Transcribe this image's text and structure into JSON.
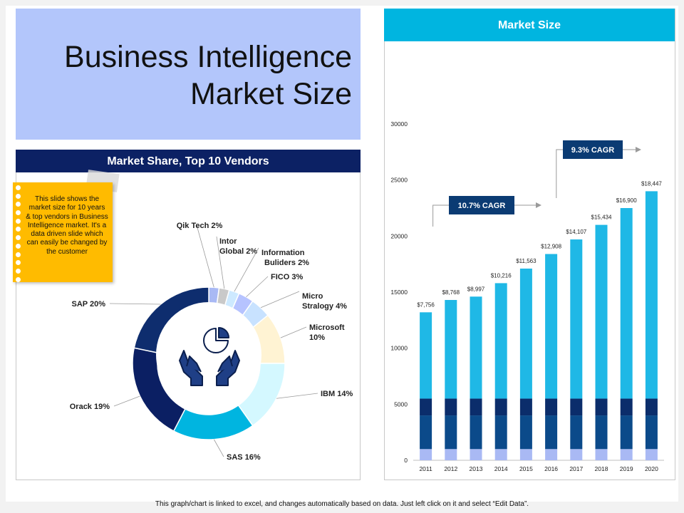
{
  "title": {
    "line1": "Business Intelligence",
    "line2": "Market Size"
  },
  "share_panel": {
    "header": "Market Share, Top 10 Vendors"
  },
  "size_panel": {
    "header": "Market Size"
  },
  "note": {
    "text": "This slide shows the market size for 10 years & top vendors in Business Intelligence market. It's a data driven slide which can easily be changed by the customer"
  },
  "footer": "This graph/chart is linked to excel, and changes automatically based on data. Just left click on it and select “Edit Data”.",
  "colors": {
    "title_bg": "#b3c6fb",
    "navy": "#0c2164",
    "cyan": "#00b5e0",
    "note": "#ffbb00",
    "bar_top": "#1fb8e6",
    "bar_seg3": "#0b2d6b",
    "bar_seg2": "#0b4a8a",
    "bar_seg1": "#a9b9f4",
    "cagr_box": "#0b3b73"
  },
  "chart_data": [
    {
      "type": "pie",
      "variant": "donut",
      "title": "Market Share, Top 10 Vendors",
      "center_icon": "hands-holding-pie-chart-icon",
      "slices": [
        {
          "label": "Qik Tech 2%",
          "value": 2,
          "color": "#a9b9f4"
        },
        {
          "label": "Intor Global  2%",
          "value": 2,
          "color": "#c9c9c9"
        },
        {
          "label": "Information Buliders 2%",
          "value": 2,
          "color": "#cde9ff"
        },
        {
          "label": "FICO  3%",
          "value": 3,
          "color": "#b6c3ff"
        },
        {
          "label": "Micro Stralogy 4%",
          "value": 4,
          "color": "#c8e2ff"
        },
        {
          "label": "Microsoft 10%",
          "value": 10,
          "color": "#fff3d3"
        },
        {
          "label": "IBM 14%",
          "value": 14,
          "color": "#d4f8ff"
        },
        {
          "label": "SAS 16%",
          "value": 16,
          "color": "#00b5e0"
        },
        {
          "label": "Orack 19%",
          "value": 19,
          "color": "#0b1f63"
        },
        {
          "label": "SAP 20%",
          "value": 20,
          "color": "#0e2d6e"
        }
      ]
    },
    {
      "type": "bar",
      "variant": "stacked",
      "title": "Market Size",
      "categories": [
        "2011",
        "2012",
        "2013",
        "2014",
        "2015",
        "2016",
        "2017",
        "2018",
        "2019",
        "2020"
      ],
      "series": [
        {
          "values": [
            1000,
            1000,
            1000,
            1000,
            1000,
            1000,
            1000,
            1000,
            1000,
            1000
          ],
          "color": "#a9b9f4"
        },
        {
          "values": [
            3000,
            3000,
            3000,
            3000,
            3000,
            3000,
            3000,
            3000,
            3000,
            3000
          ],
          "color": "#0b4a8a"
        },
        {
          "values": [
            1500,
            1500,
            1500,
            1500,
            1500,
            1500,
            1500,
            1500,
            1500,
            1500
          ],
          "color": "#0b2d6b"
        },
        {
          "values": [
            7700,
            8800,
            9100,
            10300,
            11600,
            12900,
            14200,
            15500,
            17000,
            18500
          ],
          "color": "#1fb8e6"
        }
      ],
      "data_labels": [
        "$7,756",
        "$8,768",
        "$8,997",
        "$10,216",
        "$11,563",
        "$12,908",
        "$14,107",
        "$15,434",
        "$16,900",
        "$18,447"
      ],
      "y_ticks": [
        "0",
        "5000",
        "10000",
        "15000",
        "20000",
        "25000",
        "30000"
      ],
      "ylim": [
        0,
        30000
      ],
      "annotations": [
        {
          "text": "10.7% CAGR",
          "from": "2011",
          "to": "2016"
        },
        {
          "text": "9.3% CAGR",
          "from": "2017",
          "to": "2020"
        }
      ],
      "grid": false
    }
  ]
}
